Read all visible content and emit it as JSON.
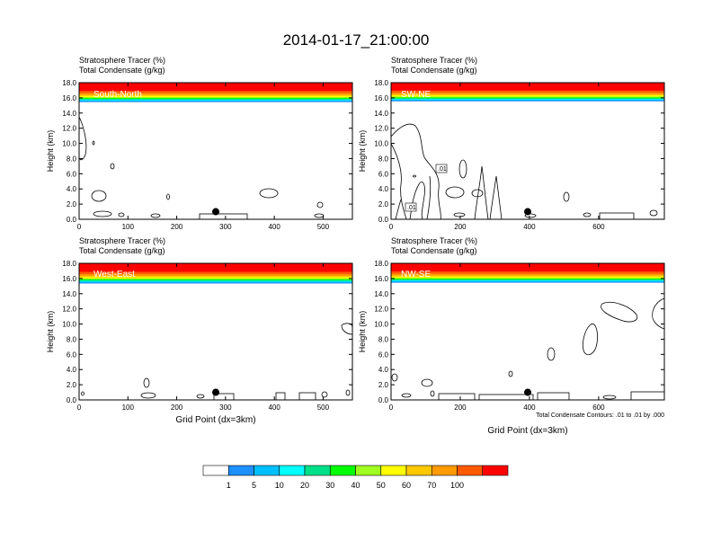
{
  "title": "2014-01-17_21:00:00",
  "subtitle_line1": "Stratosphere Tracer   (%)",
  "subtitle_line2": "Total Condensate   (g/kg)",
  "ylabel": "Height (km)",
  "xlabel": "Grid Point (dx=3km)",
  "contour_note": "Total Condensate Contours: .01 to .01 by .000",
  "contour_label": ".01",
  "colorbar": {
    "levels": [
      "1",
      "5",
      "10",
      "20",
      "30",
      "40",
      "50",
      "60",
      "70",
      "100"
    ],
    "colors": [
      "#ffffff",
      "#1e90ff",
      "#00bfff",
      "#00ffff",
      "#00e08a",
      "#00ff00",
      "#a0ff20",
      "#ffff00",
      "#ffc800",
      "#ff9a00",
      "#ff5a00",
      "#ff0000"
    ]
  },
  "chart_data": [
    {
      "type": "heatmap",
      "name": "South-North",
      "xlim": [
        0,
        560
      ],
      "ylim": [
        0,
        18
      ],
      "xticks": [
        0,
        100,
        200,
        300,
        400,
        500
      ],
      "yticks": [
        "0.0",
        "2.0",
        "4.0",
        "6.0",
        "8.0",
        "10.0",
        "12.0",
        "14.0",
        "16.0",
        "18.0"
      ],
      "tropopause_km": 15.5,
      "marker": {
        "x": 280,
        "y": 1.0
      }
    },
    {
      "type": "heatmap",
      "name": "SW-NE",
      "xlim": [
        0,
        790
      ],
      "ylim": [
        0,
        18
      ],
      "xticks": [
        0,
        200,
        400,
        600
      ],
      "yticks": [
        "0.0",
        "2.0",
        "4.0",
        "6.0",
        "8.0",
        "10.0",
        "12.0",
        "14.0",
        "16.0",
        "18.0"
      ],
      "tropopause_km": 15.6,
      "marker": {
        "x": 395,
        "y": 1.0
      }
    },
    {
      "type": "heatmap",
      "name": "West-East",
      "xlim": [
        0,
        560
      ],
      "ylim": [
        0,
        18
      ],
      "xticks": [
        0,
        100,
        200,
        300,
        400,
        500
      ],
      "yticks": [
        "0.0",
        "2.0",
        "4.0",
        "6.0",
        "8.0",
        "10.0",
        "12.0",
        "14.0",
        "16.0",
        "18.0"
      ],
      "tropopause_km": 15.4,
      "marker": {
        "x": 280,
        "y": 1.0
      }
    },
    {
      "type": "heatmap",
      "name": "NW-SE",
      "xlim": [
        0,
        790
      ],
      "ylim": [
        0,
        18
      ],
      "xticks": [
        0,
        200,
        400,
        600
      ],
      "yticks": [
        "0.0",
        "2.0",
        "4.0",
        "6.0",
        "8.0",
        "10.0",
        "12.0",
        "14.0",
        "16.0",
        "18.0"
      ],
      "tropopause_km": 15.5,
      "marker": {
        "x": 395,
        "y": 1.0
      }
    }
  ]
}
